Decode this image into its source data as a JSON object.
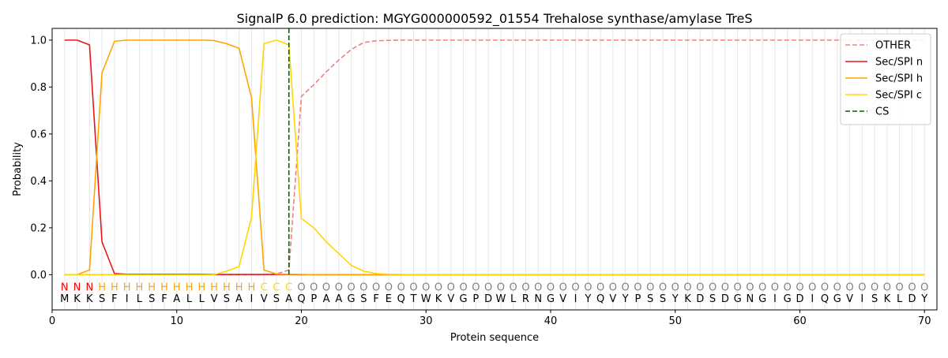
{
  "chart_data": {
    "type": "line",
    "title": "SignalP 6.0 prediction: MGYG000000592_01554 Trehalose synthase/amylase TreS",
    "xlabel": "Protein sequence",
    "ylabel": "Probability",
    "xlim": [
      0,
      71
    ],
    "ylim": [
      -0.15,
      1.05
    ],
    "x_ticks": [
      0,
      10,
      20,
      30,
      40,
      50,
      60,
      70
    ],
    "y_ticks": [
      0.0,
      0.2,
      0.4,
      0.6,
      0.8,
      1.0
    ],
    "grid": "vertical lines at each residue",
    "legend_position": "top-right",
    "sequence": [
      "M",
      "K",
      "K",
      "S",
      "F",
      "I",
      "L",
      "S",
      "F",
      "A",
      "L",
      "L",
      "V",
      "S",
      "A",
      "I",
      "V",
      "S",
      "A",
      "Q",
      "P",
      "A",
      "A",
      "G",
      "S",
      "F",
      "E",
      "Q",
      "T",
      "W",
      "K",
      "V",
      "G",
      "P",
      "D",
      "W",
      "L",
      "R",
      "N",
      "G",
      "V",
      "I",
      "Y",
      "Q",
      "V",
      "Y",
      "P",
      "S",
      "S",
      "Y",
      "K",
      "D",
      "S",
      "D",
      "G",
      "N",
      "G",
      "I",
      "G",
      "D",
      "I",
      "Q",
      "G",
      "V",
      "I",
      "S",
      "K",
      "L",
      "D",
      "Y"
    ],
    "labels": [
      "N",
      "N",
      "N",
      "H",
      "H",
      "H",
      "H",
      "H",
      "H",
      "H",
      "H",
      "H",
      "H",
      "H",
      "H",
      "H",
      "C",
      "C",
      "C",
      "O",
      "O",
      "O",
      "O",
      "O",
      "O",
      "O",
      "O",
      "O",
      "O",
      "O",
      "O",
      "O",
      "O",
      "O",
      "O",
      "O",
      "O",
      "O",
      "O",
      "O",
      "O",
      "O",
      "O",
      "O",
      "O",
      "O",
      "O",
      "O",
      "O",
      "O",
      "O",
      "O",
      "O",
      "O",
      "O",
      "O",
      "O",
      "O",
      "O",
      "O",
      "O",
      "O",
      "O",
      "O",
      "O",
      "O",
      "O",
      "O",
      "O",
      "O"
    ],
    "label_colors": {
      "N": "#ff0000",
      "H": "#ffa500",
      "C": "#ffd700",
      "O": "#808080"
    },
    "cleavage_site": 19,
    "series": [
      {
        "name": "OTHER",
        "color": "#f08080",
        "dash": "dashed",
        "x_start": 1,
        "values": [
          0,
          0,
          0,
          0,
          0,
          0,
          0,
          0,
          0,
          0,
          0,
          0,
          0,
          0,
          0,
          0,
          0,
          0.003,
          0.02,
          0.76,
          0.81,
          0.865,
          0.915,
          0.96,
          0.99,
          0.997,
          0.999,
          1,
          1,
          1,
          1,
          1,
          1,
          1,
          1,
          1,
          1,
          1,
          1,
          1,
          1,
          1,
          1,
          1,
          1,
          1,
          1,
          1,
          1,
          1,
          1,
          1,
          1,
          1,
          1,
          1,
          1,
          1,
          1,
          1,
          1,
          1,
          1,
          1,
          1,
          1,
          1,
          1,
          1,
          1
        ]
      },
      {
        "name": "Sec/SPI n",
        "color": "#e8141e",
        "dash": "solid",
        "x_start": 1,
        "values": [
          1.0,
          1.0,
          0.98,
          0.14,
          0.005,
          0.002,
          0.002,
          0.002,
          0.002,
          0.002,
          0.002,
          0.002,
          0.001,
          0.001,
          0.001,
          0.001,
          0.001,
          0.001,
          0.001,
          0,
          0,
          0,
          0,
          0,
          0,
          0,
          0,
          0,
          0,
          0,
          0,
          0,
          0,
          0,
          0,
          0,
          0,
          0,
          0,
          0,
          0,
          0,
          0,
          0,
          0,
          0,
          0,
          0,
          0,
          0,
          0,
          0,
          0,
          0,
          0,
          0,
          0,
          0,
          0,
          0,
          0,
          0,
          0,
          0,
          0,
          0,
          0,
          0,
          0,
          0
        ]
      },
      {
        "name": "Sec/SPI h",
        "color": "#ffa500",
        "dash": "solid",
        "x_start": 1,
        "values": [
          0,
          0,
          0.02,
          0.86,
          0.995,
          1.0,
          1.0,
          1.0,
          1.0,
          1.0,
          1.0,
          1.0,
          0.998,
          0.985,
          0.965,
          0.755,
          0.02,
          0.003,
          0.002,
          0.001,
          0,
          0,
          0,
          0,
          0,
          0,
          0,
          0,
          0,
          0,
          0,
          0,
          0,
          0,
          0,
          0,
          0,
          0,
          0,
          0,
          0,
          0,
          0,
          0,
          0,
          0,
          0,
          0,
          0,
          0,
          0,
          0,
          0,
          0,
          0,
          0,
          0,
          0,
          0,
          0,
          0,
          0,
          0,
          0,
          0,
          0,
          0,
          0,
          0,
          0
        ]
      },
      {
        "name": "Sec/SPI c",
        "color": "#ffd700",
        "dash": "solid",
        "x_start": 1,
        "values": [
          0,
          0,
          0,
          0,
          0,
          0,
          0,
          0,
          0,
          0,
          0,
          0,
          0,
          0.015,
          0.035,
          0.245,
          0.985,
          1.0,
          0.98,
          0.24,
          0.2,
          0.14,
          0.09,
          0.04,
          0.015,
          0.005,
          0.002,
          0.001,
          0,
          0,
          0,
          0,
          0,
          0,
          0,
          0,
          0,
          0,
          0,
          0,
          0,
          0,
          0,
          0,
          0,
          0,
          0,
          0,
          0,
          0,
          0,
          0,
          0,
          0,
          0,
          0,
          0,
          0,
          0,
          0,
          0,
          0,
          0,
          0,
          0,
          0,
          0,
          0,
          0,
          0
        ]
      }
    ],
    "cs_legend": {
      "name": "CS",
      "color": "#006400",
      "dash": "dashed"
    }
  }
}
